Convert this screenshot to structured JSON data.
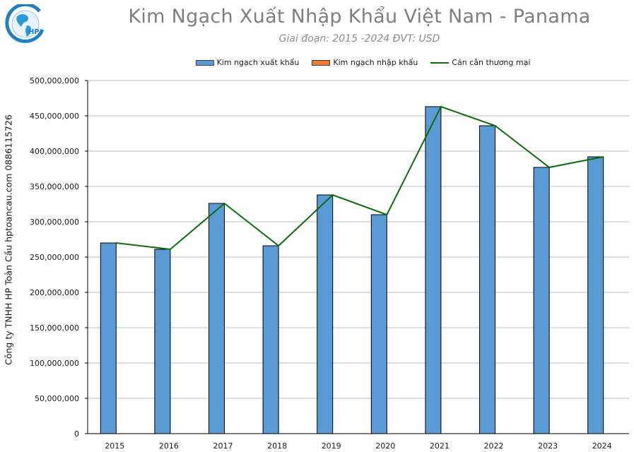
{
  "header": {
    "title": "Kim Ngạch Xuất Nhập Khẩu Việt Nam - Panama",
    "subtitle": "Giai đoạn: 2015 -2024  ĐVT: USD",
    "logo_text": "HP"
  },
  "watermark": "Công ty TNHH HP Toàn Cầu hptoancau.com 0886115726",
  "legend": [
    {
      "label": "Kim ngạch xuất khẩu",
      "type": "bar",
      "color": "#5b9bd5"
    },
    {
      "label": "Kim ngạch nhập khẩu",
      "type": "bar",
      "color": "#ed7d31"
    },
    {
      "label": "Cán cân thương mại",
      "type": "line",
      "color": "#0b6e0b"
    }
  ],
  "chart_data": {
    "type": "bar",
    "title": "Kim Ngạch Xuất Nhập Khẩu Việt Nam - Panama",
    "subtitle": "Giai đoạn: 2015 -2024  ĐVT: USD",
    "xlabel": "",
    "ylabel": "Công ty TNHH HP Toàn Cầu hptoancau.com 0886115726",
    "categories": [
      "2015",
      "2016",
      "2017",
      "2018",
      "2019",
      "2020",
      "2021",
      "2022",
      "2023",
      "2024"
    ],
    "series": [
      {
        "name": "Kim ngạch xuất khẩu",
        "type": "bar",
        "color": "#5b9bd5",
        "values": [
          270000000,
          261000000,
          326000000,
          266000000,
          338000000,
          310000000,
          463000000,
          436000000,
          377000000,
          392000000
        ]
      },
      {
        "name": "Kim ngạch nhập khẩu",
        "type": "bar",
        "color": "#ed7d31",
        "values": [
          0,
          0,
          0,
          0,
          0,
          0,
          0,
          0,
          0,
          0
        ]
      },
      {
        "name": "Cán cân thương mại",
        "type": "line",
        "color": "#0b6e0b",
        "values": [
          270000000,
          261000000,
          326000000,
          266000000,
          338000000,
          310000000,
          463000000,
          436000000,
          377000000,
          392000000
        ]
      }
    ],
    "ylim": [
      0,
      500000000
    ],
    "yticks": [
      "0",
      "50,000,000",
      "100,000,000",
      "150,000,000",
      "200,000,000",
      "250,000,000",
      "300,000,000",
      "350,000,000",
      "400,000,000",
      "450,000,000",
      "500,000,000"
    ],
    "grid": true,
    "legend_position": "top"
  }
}
